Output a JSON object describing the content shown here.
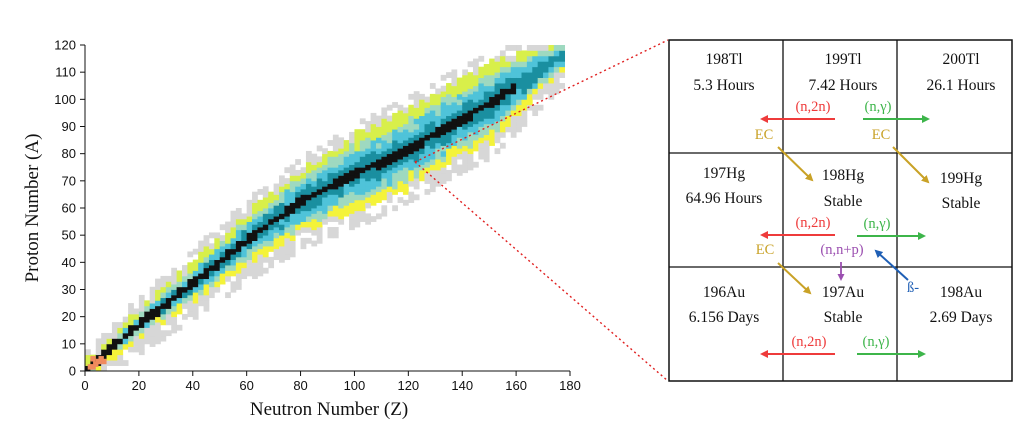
{
  "colors": {
    "stable": "#111111",
    "long": "#1a8fa0",
    "mid": "#4fc3d9",
    "short": "#9ed9c0",
    "vshort": "#d8ef4a",
    "yellow": "#f4f33a",
    "unknown": "#d7d7d7",
    "n2n": "#ee3b3b",
    "ng": "#3db54a",
    "ec": "#c9a227",
    "beta": "#1f5fb5",
    "nnp": "#9b4fb0",
    "zoom": "#e02020"
  },
  "chart_data": {
    "type": "heatmap",
    "title": "",
    "xlabel": "Neutron Number (Z)",
    "ylabel": "Proton Number (A)",
    "xlim": [
      0,
      180
    ],
    "ylim": [
      0,
      120
    ],
    "x_ticks": [
      "0",
      "20",
      "40",
      "60",
      "80",
      "100",
      "120",
      "140",
      "160",
      "180"
    ],
    "y_ticks": [
      "0",
      "10",
      "20",
      "30",
      "40",
      "50",
      "60",
      "70",
      "80",
      "90",
      "100",
      "110",
      "120"
    ],
    "stability_band": [
      {
        "n": 0,
        "z": 0
      },
      {
        "n": 20,
        "z": 17
      },
      {
        "n": 40,
        "z": 32
      },
      {
        "n": 60,
        "z": 48
      },
      {
        "n": 80,
        "z": 62
      },
      {
        "n": 100,
        "z": 72
      },
      {
        "n": 118,
        "z": 80
      },
      {
        "n": 130,
        "z": 87
      },
      {
        "n": 150,
        "z": 98
      },
      {
        "n": 176,
        "z": 115
      }
    ]
  },
  "chart": {
    "label_x": "Neutron Number (Z)",
    "label_y": "Proton Number (A)",
    "x_ticks": [
      "0",
      "20",
      "40",
      "60",
      "80",
      "100",
      "120",
      "140",
      "160",
      "180"
    ],
    "y_ticks": [
      "0",
      "10",
      "20",
      "30",
      "40",
      "50",
      "60",
      "70",
      "80",
      "90",
      "100",
      "110",
      "120"
    ]
  },
  "grid": {
    "cells": [
      {
        "name": "198Tl",
        "life": "5.3 Hours"
      },
      {
        "name": "199Tl",
        "life": "7.42 Hours"
      },
      {
        "name": "200Tl",
        "life": "26.1 Hours"
      },
      {
        "name": "197Hg",
        "life": "64.96 Hours"
      },
      {
        "name": "198Hg",
        "life": "Stable"
      },
      {
        "name": "199Hg",
        "life": "Stable"
      },
      {
        "name": "196Au",
        "life": "6.156 Days"
      },
      {
        "name": "197Au",
        "life": "Stable"
      },
      {
        "name": "198Au",
        "life": "2.69 Days"
      }
    ],
    "labels": {
      "n2n_1": "(n,2n)",
      "ng_1": "(n,γ)",
      "ec_1": "EC",
      "ec_2": "EC",
      "n2n_2": "(n,2n)",
      "ng_2": "(n,γ)",
      "ec_3": "EC",
      "nnp": "(n,n+p)",
      "beta": "ß-",
      "n2n_3": "(n,2n)",
      "ng_3": "(n,γ)"
    }
  }
}
